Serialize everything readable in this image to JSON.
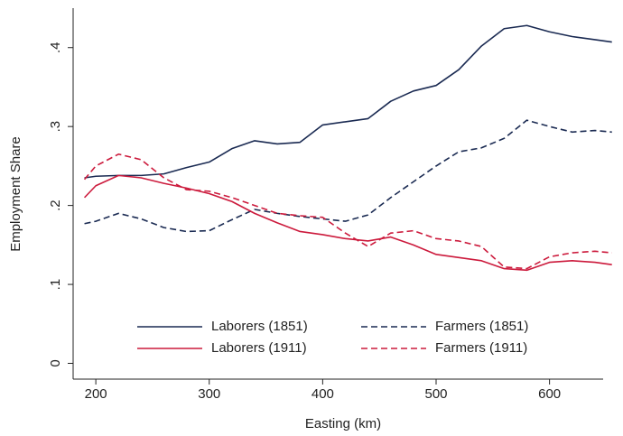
{
  "chart_data": {
    "type": "line",
    "x_label": "Easting (km)",
    "y_label": "Employment Share",
    "x": [
      190,
      200,
      220,
      240,
      260,
      280,
      300,
      320,
      340,
      360,
      380,
      400,
      420,
      440,
      460,
      480,
      500,
      520,
      540,
      560,
      580,
      600,
      620,
      640,
      655
    ],
    "series": [
      {
        "name": "Laborers (1851)",
        "color": "#1a2a52",
        "dash": false,
        "values": [
          0.235,
          0.237,
          0.238,
          0.238,
          0.24,
          0.248,
          0.255,
          0.272,
          0.282,
          0.278,
          0.28,
          0.302,
          0.306,
          0.31,
          0.332,
          0.345,
          0.352,
          0.372,
          0.402,
          0.424,
          0.428,
          0.42,
          0.414,
          0.41,
          0.407
        ]
      },
      {
        "name": "Farmers (1851)",
        "color": "#1a2a52",
        "dash": true,
        "values": [
          0.177,
          0.18,
          0.19,
          0.183,
          0.172,
          0.167,
          0.168,
          0.182,
          0.195,
          0.19,
          0.186,
          0.183,
          0.18,
          0.188,
          0.21,
          0.23,
          0.25,
          0.268,
          0.273,
          0.285,
          0.308,
          0.3,
          0.293,
          0.295,
          0.293
        ]
      },
      {
        "name": "Laborers (1911)",
        "color": "#cc1a3c",
        "dash": false,
        "values": [
          0.21,
          0.225,
          0.238,
          0.235,
          0.228,
          0.222,
          0.215,
          0.205,
          0.19,
          0.178,
          0.167,
          0.163,
          0.158,
          0.155,
          0.16,
          0.15,
          0.138,
          0.134,
          0.13,
          0.12,
          0.118,
          0.128,
          0.13,
          0.128,
          0.125
        ]
      },
      {
        "name": "Farmers (1911)",
        "color": "#cc1a3c",
        "dash": true,
        "values": [
          0.233,
          0.25,
          0.265,
          0.258,
          0.235,
          0.22,
          0.218,
          0.21,
          0.2,
          0.19,
          0.187,
          0.185,
          0.165,
          0.148,
          0.165,
          0.168,
          0.158,
          0.155,
          0.148,
          0.122,
          0.12,
          0.135,
          0.14,
          0.142,
          0.14
        ]
      }
    ],
    "xlim": [
      180,
      660
    ],
    "xticks": [
      200,
      300,
      400,
      500,
      600
    ],
    "ylim": [
      -0.02,
      0.45
    ],
    "yticks": [
      0,
      {
        "value": 0.1,
        "label": ".1"
      },
      {
        "value": 0.2,
        "label": ".2"
      },
      {
        "value": 0.3,
        "label": ".3"
      },
      {
        "value": 0.4,
        "label": ".4"
      }
    ],
    "grid": false,
    "legend": "bottom"
  }
}
